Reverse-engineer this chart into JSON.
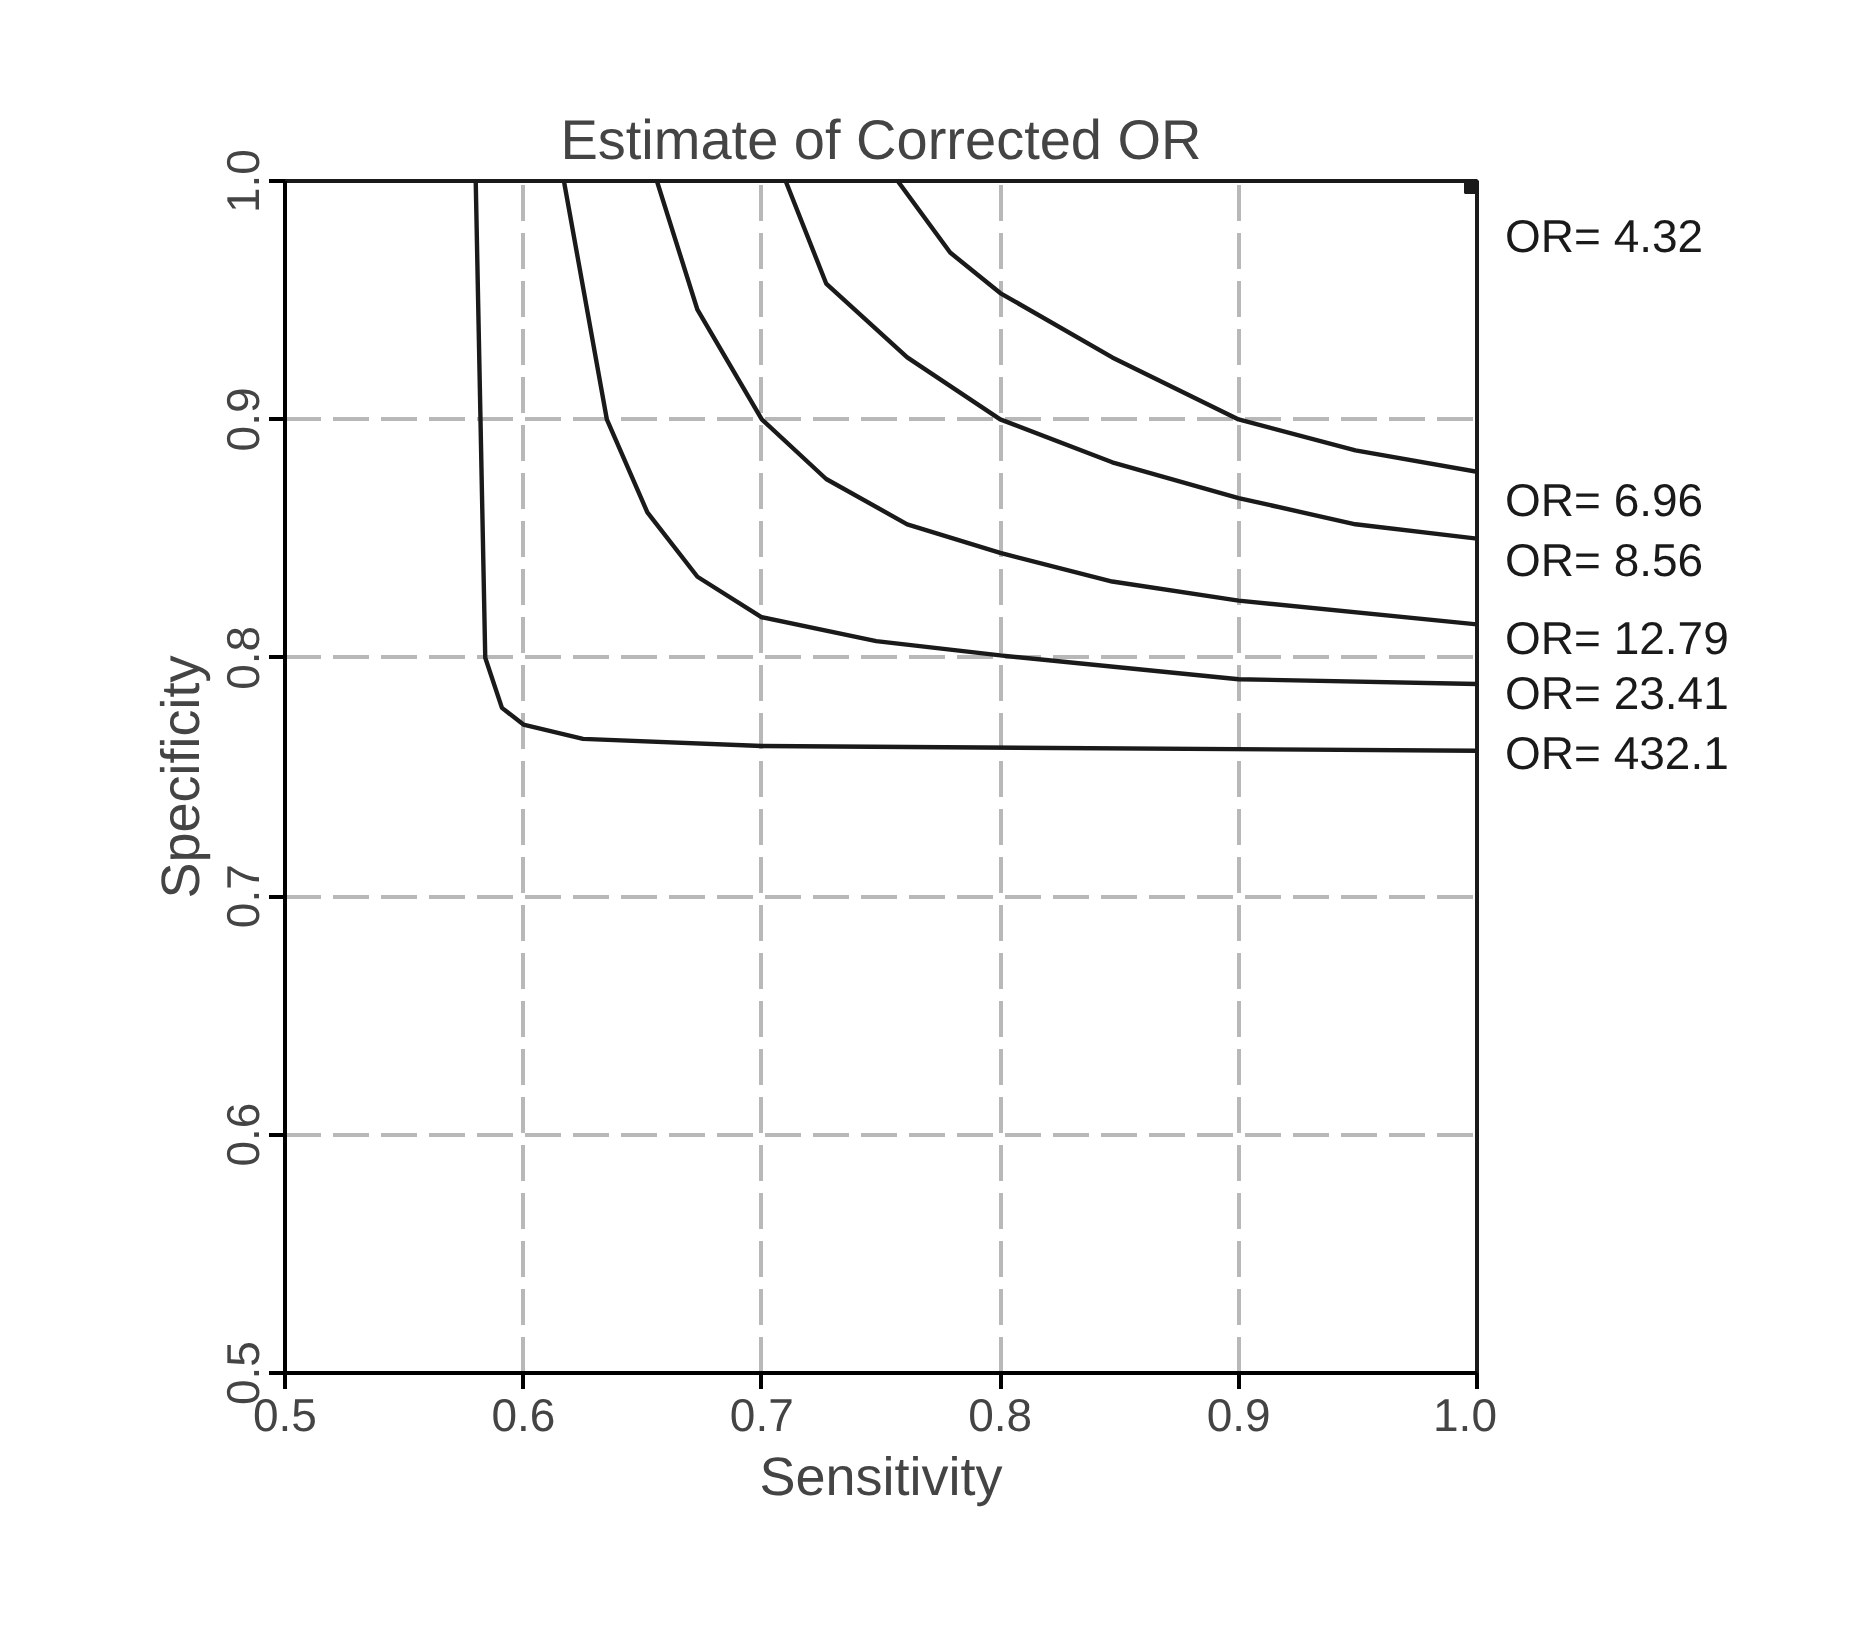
{
  "chart_data": {
    "type": "line",
    "title": "Estimate of Corrected OR",
    "xlabel": "Sensitivity",
    "ylabel": "Specificity",
    "xlim": [
      0.5,
      1.0
    ],
    "ylim": [
      0.5,
      1.0
    ],
    "xticks": [
      {
        "value": 0.5,
        "label": "0.5"
      },
      {
        "value": 0.6,
        "label": "0.6"
      },
      {
        "value": 0.7,
        "label": "0.7"
      },
      {
        "value": 0.8,
        "label": "0.8"
      },
      {
        "value": 0.9,
        "label": "0.9"
      },
      {
        "value": 1.0,
        "label": "1.0"
      }
    ],
    "yticks": [
      {
        "value": 0.5,
        "label": "0.5"
      },
      {
        "value": 0.6,
        "label": "0.6"
      },
      {
        "value": 0.7,
        "label": "0.7"
      },
      {
        "value": 0.8,
        "label": "0.8"
      },
      {
        "value": 0.9,
        "label": "0.9"
      },
      {
        "value": 1.0,
        "label": "1.0"
      }
    ],
    "grid": true,
    "line_style": "solid",
    "series": [
      {
        "name": "OR= 4.32",
        "type": "scatter",
        "marker": "square",
        "color": "#1a1a1a",
        "x": [
          1.0
        ],
        "values": [
          1.0
        ]
      },
      {
        "name": "OR= 6.96",
        "color": "#1a1a1a",
        "x": [
          0.757,
          0.779,
          0.8,
          0.847,
          0.9,
          0.949,
          1.0
        ],
        "values": [
          1.0,
          0.97,
          0.953,
          0.926,
          0.9,
          0.887,
          0.878
        ]
      },
      {
        "name": "OR= 8.56",
        "color": "#1a1a1a",
        "x": [
          0.71,
          0.727,
          0.761,
          0.8,
          0.847,
          0.9,
          0.949,
          1.0
        ],
        "values": [
          1.0,
          0.957,
          0.926,
          0.9,
          0.882,
          0.867,
          0.856,
          0.85
        ]
      },
      {
        "name": "OR= 12.79",
        "color": "#1a1a1a",
        "x": [
          0.656,
          0.673,
          0.7,
          0.727,
          0.761,
          0.8,
          0.847,
          0.9,
          1.0
        ],
        "values": [
          1.0,
          0.946,
          0.9,
          0.875,
          0.856,
          0.844,
          0.832,
          0.824,
          0.814
        ]
      },
      {
        "name": "OR= 23.41",
        "color": "#1a1a1a",
        "x": [
          0.617,
          0.635,
          0.652,
          0.673,
          0.7,
          0.748,
          0.8,
          0.9,
          1.0
        ],
        "values": [
          1.0,
          0.9,
          0.861,
          0.834,
          0.817,
          0.807,
          0.801,
          0.791,
          0.789
        ]
      },
      {
        "name": "OR= 432.1",
        "color": "#1a1a1a",
        "x": [
          0.58,
          0.584,
          0.591,
          0.6,
          0.625,
          0.7,
          1.0
        ],
        "values": [
          1.0,
          0.8,
          0.779,
          0.772,
          0.766,
          0.763,
          0.761
        ]
      }
    ]
  }
}
